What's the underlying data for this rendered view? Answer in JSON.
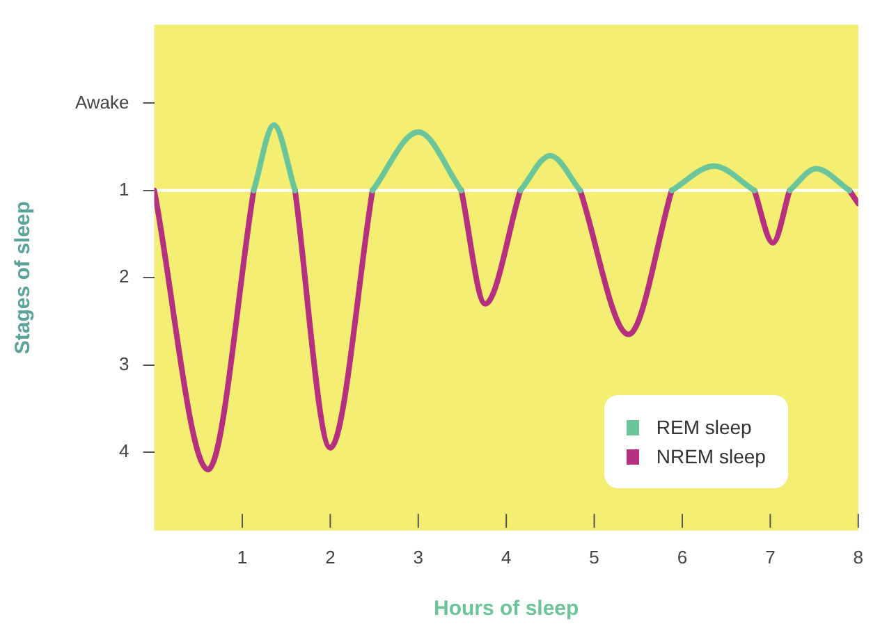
{
  "chart_data": {
    "type": "line",
    "xlabel": "Hours of sleep",
    "ylabel": "Stages of sleep",
    "xlim": [
      0,
      8
    ],
    "xticks": [
      1,
      2,
      3,
      4,
      5,
      6,
      7,
      8
    ],
    "ylim": [
      4.9,
      -0.9
    ],
    "yticks": [
      {
        "value": 0,
        "label": "Awake"
      },
      1,
      2,
      3,
      4
    ],
    "grid": false,
    "legend": "bottom right",
    "marker": "none",
    "line_style": "solid",
    "ref_lines": [
      {
        "axis": "y",
        "value": 1,
        "color": "#ffffff"
      }
    ],
    "series": [
      {
        "name": "REM sleep",
        "color": "#6cc59a",
        "x": [
          1.13,
          1.36,
          1.6,
          2.0,
          2.48,
          3.0,
          3.49,
          3.76,
          4.16,
          4.5,
          4.84,
          5.39,
          5.88,
          6.36,
          6.82,
          7.03,
          7.22,
          7.52,
          7.9
        ],
        "values": [
          1,
          0.25,
          1,
          null,
          1,
          0.33,
          1,
          null,
          1,
          0.6,
          1,
          null,
          1,
          0.72,
          1,
          null,
          1,
          0.75,
          1
        ]
      },
      {
        "name": "NREM sleep",
        "color": "#b5307f",
        "x": [
          0,
          0.61,
          1.13,
          1.36,
          1.6,
          2.0,
          2.48,
          3.0,
          3.49,
          3.76,
          4.16,
          4.5,
          4.84,
          5.39,
          5.88,
          6.36,
          6.82,
          7.03,
          7.22,
          7.52,
          7.9,
          8
        ],
        "values": [
          1,
          4.2,
          1,
          null,
          1,
          3.95,
          1,
          null,
          1,
          2.3,
          1,
          null,
          1,
          2.65,
          1,
          null,
          1,
          1.6,
          1,
          null,
          1,
          1.15
        ]
      }
    ]
  }
}
